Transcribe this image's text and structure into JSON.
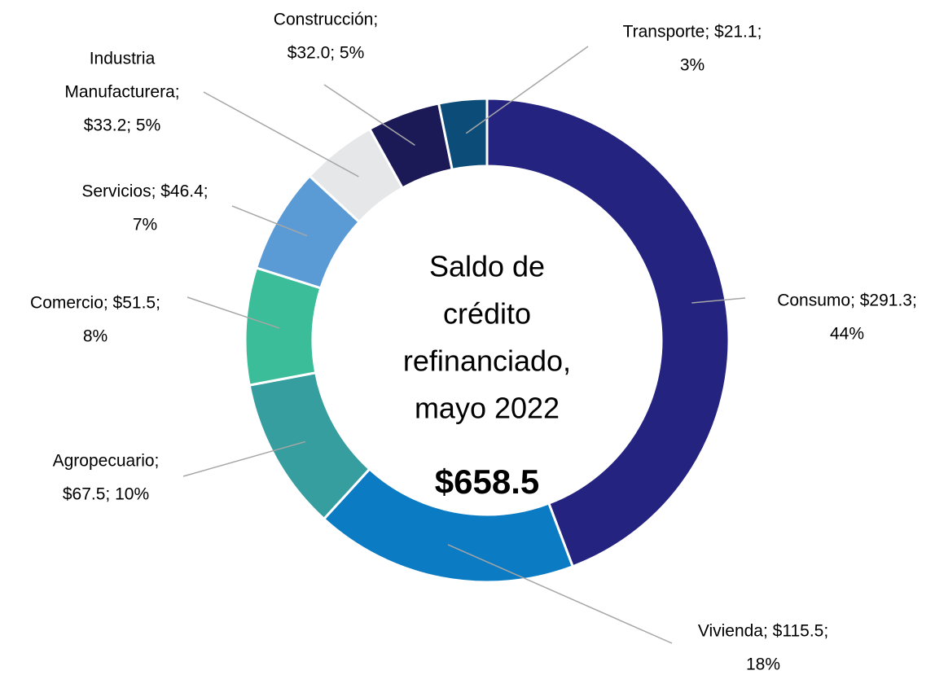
{
  "chart_data": {
    "type": "donut",
    "center_title": [
      "Saldo de",
      "crédito",
      "refinanciado,",
      "mayo 2022"
    ],
    "center_value": "$658.5",
    "categories": [
      "Consumo",
      "Vivienda",
      "Agropecuario",
      "Comercio",
      "Servicios",
      "Industria Manufacturera",
      "Construcción",
      "Transporte"
    ],
    "values": [
      291.3,
      115.5,
      67.5,
      51.5,
      46.4,
      33.2,
      32.0,
      21.1
    ],
    "value_labels": [
      [
        "Consumo; $291.3;",
        "44%"
      ],
      [
        "Vivienda; $115.5;",
        "18%"
      ],
      [
        "Agropecuario;",
        "$67.5; 10%"
      ],
      [
        "Comercio; $51.5;",
        "8%"
      ],
      [
        "Servicios; $46.4;",
        "7%"
      ],
      [
        "Industria",
        "Manufacturera;",
        "$33.2; 5%"
      ],
      [
        "Construcción;",
        "$32.0; 5%"
      ],
      [
        "Transporte; $21.1;",
        "3%"
      ]
    ],
    "colors": [
      "#24237f",
      "#0b7bc3",
      "#379e9f",
      "#3cbd9a",
      "#5b9bd5",
      "#e5e7e9",
      "#1b1a57",
      "#0b4d78"
    ]
  }
}
